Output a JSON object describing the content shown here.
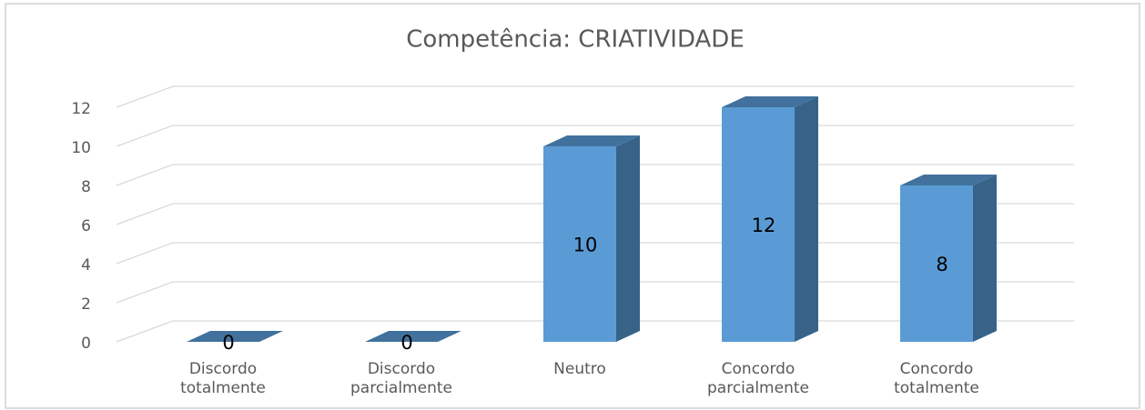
{
  "chart_data": {
    "type": "bar3d",
    "title": "Competência: CRIATIVIDADE",
    "categories": [
      "Discordo totalmente",
      "Discordo parcialmente",
      "Neutro",
      "Concordo parcialmente",
      "Concordo totalmente"
    ],
    "values": [
      0,
      0,
      10,
      12,
      8
    ],
    "color": "#5b9bd5",
    "ylim": [
      0,
      12
    ],
    "yticks": [
      0,
      2,
      4,
      6,
      8,
      10,
      12
    ],
    "grid": true
  }
}
